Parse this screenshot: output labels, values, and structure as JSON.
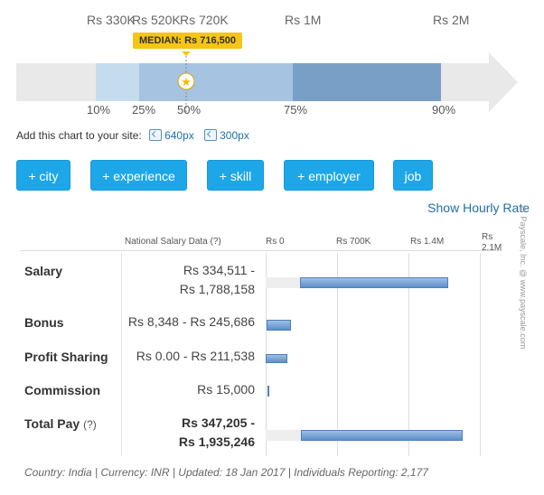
{
  "chart_data": [
    {
      "type": "range",
      "scale_labels": [
        "Rs 330K",
        "Rs 520K",
        "Rs 720K",
        "Rs 1M",
        "Rs 2M"
      ],
      "percentiles": [
        "10%",
        "25%",
        "50%",
        "75%",
        "90%"
      ],
      "median_label": "MEDIAN: Rs 716,500",
      "median_value": 716500
    },
    {
      "type": "bar",
      "orientation": "horizontal",
      "column_header": "National Salary Data",
      "help_mark": "(?)",
      "tick_labels": [
        "Rs 0",
        "Rs 700K",
        "Rs 1.4M",
        "Rs 2.1M"
      ],
      "xlim": [
        0,
        2100000
      ],
      "rows": [
        {
          "label": "Salary",
          "range_text": [
            "Rs 334,511 -",
            "Rs 1,788,158"
          ],
          "low": 334511,
          "high": 1788158
        },
        {
          "label": "Bonus",
          "range_text": [
            "Rs 8,348 - Rs 245,686"
          ],
          "low": 8348,
          "high": 245686
        },
        {
          "label": "Profit Sharing",
          "range_text": [
            "Rs 0.00 - Rs 211,538"
          ],
          "low": 0,
          "high": 211538
        },
        {
          "label": "Commission",
          "range_text": [
            "Rs 15,000"
          ],
          "low": 15000,
          "high": 15000
        },
        {
          "label": "Total Pay",
          "help": "(?)",
          "range_text": [
            "Rs 347,205 -",
            "Rs 1,935,246"
          ],
          "low": 347205,
          "high": 1935246
        }
      ]
    }
  ],
  "embed": {
    "text": "Add this chart to your site:",
    "links": [
      "640px",
      "300px"
    ]
  },
  "filters": [
    "+ city",
    "+ experience",
    "+ skill",
    "+ employer",
    "job"
  ],
  "hourly_link": "Show Hourly Rate",
  "watermark": "© Payscale, Inc. @ www.payscale.com",
  "footer": "Country: India | Currency: INR | Updated: 18 Jan 2017 | Individuals Reporting: 2,177",
  "colors": {
    "accent": "#1ea7e8",
    "median_badge": "#f5c518",
    "band_light": "#c5dcef",
    "band_mid": "#a6c3e1",
    "band_dark": "#7a9fc6",
    "arrow": "#e9e9e9"
  }
}
